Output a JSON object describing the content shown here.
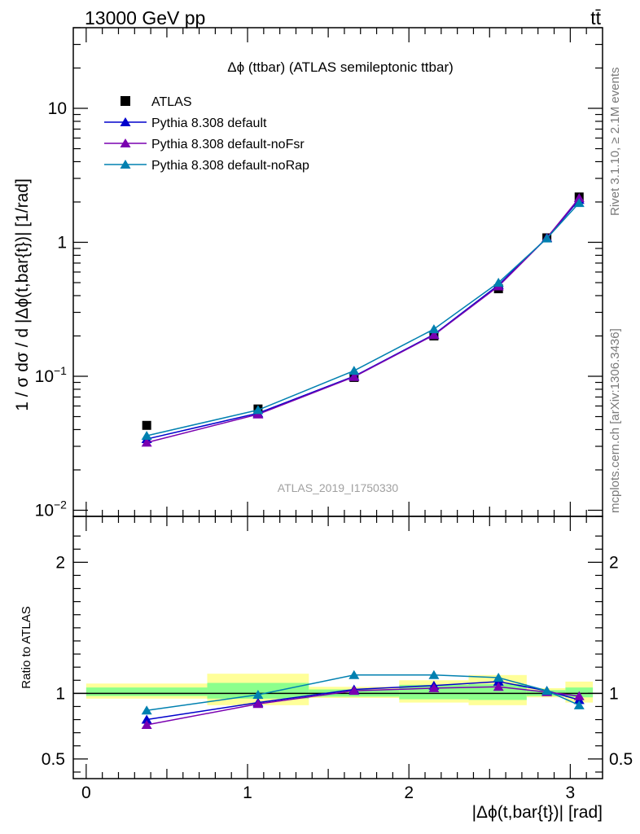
{
  "header": {
    "left": "13000 GeV pp",
    "right": "tt̄"
  },
  "side_labels": {
    "rivet": "Rivet 3.1.10, ≥ 2.1M events",
    "mcplots": "mcplots.cern.ch [arXiv:1306.3436]"
  },
  "watermark": "ATLAS_2019_I1750330",
  "colors": {
    "data": "#000000",
    "default": "#0000cc",
    "noFsr": "#7a00b0",
    "noRap": "#0080b0",
    "band_outer": "#ffff99",
    "band_inner": "#8cff8c"
  },
  "chart_data": [
    {
      "type": "scatter",
      "title": "Δϕ (ttbar) (ATLAS semileptonic ttbar)",
      "xlabel": "|Δϕ(t,bar{t})| [rad]",
      "ylabel": "1 / σ dσ / d |Δϕ(t,bar{t})| [1/rad]",
      "yscale": "log",
      "ylim": [
        0.009,
        40
      ],
      "xlim": [
        -0.08,
        3.2
      ],
      "yticks": [
        {
          "value": 0.01,
          "label": "10",
          "exp": "−2"
        },
        {
          "value": 0.1,
          "label": "10",
          "exp": "−1"
        },
        {
          "value": 1,
          "label": "1",
          "exp": ""
        },
        {
          "value": 10,
          "label": "10",
          "exp": ""
        }
      ],
      "legend_position": "top-left",
      "x": [
        0.375,
        1.065,
        1.66,
        2.155,
        2.555,
        2.855,
        3.055
      ],
      "series": [
        {
          "name": "ATLAS",
          "key": "data",
          "marker": "square",
          "values": [
            0.043,
            0.057,
            0.098,
            0.2,
            0.45,
            1.08,
            2.18
          ]
        },
        {
          "name": "Pythia 8.308 default",
          "key": "default",
          "marker": "triangle",
          "values": [
            0.034,
            0.053,
            0.1,
            0.205,
            0.48,
            1.08,
            2.08
          ]
        },
        {
          "name": "Pythia 8.308 default-noFsr",
          "key": "noFsr",
          "marker": "triangle",
          "values": [
            0.032,
            0.052,
            0.099,
            0.203,
            0.47,
            1.08,
            2.14
          ]
        },
        {
          "name": "Pythia 8.308 default-noRap",
          "key": "noRap",
          "marker": "triangle",
          "values": [
            0.036,
            0.056,
            0.11,
            0.225,
            0.5,
            1.07,
            1.97
          ]
        }
      ]
    },
    {
      "type": "line",
      "ylabel": "Ratio to ATLAS",
      "ylim": [
        0.35,
        2.35
      ],
      "xlim": [
        -0.08,
        3.2
      ],
      "yticks": [
        0.5,
        1,
        2
      ],
      "xticks": [
        0,
        1,
        2,
        3
      ],
      "x": [
        0.375,
        1.065,
        1.66,
        2.155,
        2.555,
        2.855,
        3.055
      ],
      "bands": [
        {
          "x0": 0.0,
          "x1": 0.75,
          "inner": [
            0.98,
            1.045
          ],
          "outer": [
            0.96,
            1.075
          ]
        },
        {
          "x0": 0.75,
          "x1": 1.38,
          "inner": [
            0.96,
            1.08
          ],
          "outer": [
            0.91,
            1.15
          ]
        },
        {
          "x0": 1.38,
          "x1": 1.94,
          "inner": [
            0.975,
            1.03
          ],
          "outer": [
            0.965,
            1.05
          ]
        },
        {
          "x0": 1.94,
          "x1": 2.37,
          "inner": [
            0.955,
            1.065
          ],
          "outer": [
            0.93,
            1.1
          ]
        },
        {
          "x0": 2.37,
          "x1": 2.73,
          "inner": [
            0.95,
            1.07
          ],
          "outer": [
            0.91,
            1.14
          ]
        },
        {
          "x0": 2.73,
          "x1": 2.97,
          "inner": [
            0.98,
            1.025
          ],
          "outer": [
            0.97,
            1.04
          ]
        },
        {
          "x0": 2.97,
          "x1": 3.14,
          "inner": [
            0.97,
            1.045
          ],
          "outer": [
            0.93,
            1.09
          ]
        }
      ],
      "series": [
        {
          "name": "Pythia 8.308 default",
          "key": "default",
          "values": [
            0.8,
            0.93,
            1.03,
            1.06,
            1.09,
            1.02,
            0.95
          ]
        },
        {
          "name": "Pythia 8.308 default-noFsr",
          "key": "noFsr",
          "values": [
            0.76,
            0.92,
            1.02,
            1.04,
            1.05,
            1.01,
            0.98
          ]
        },
        {
          "name": "Pythia 8.308 default-noRap",
          "key": "noRap",
          "values": [
            0.87,
            0.99,
            1.14,
            1.14,
            1.12,
            1.02,
            0.91
          ]
        }
      ]
    }
  ]
}
